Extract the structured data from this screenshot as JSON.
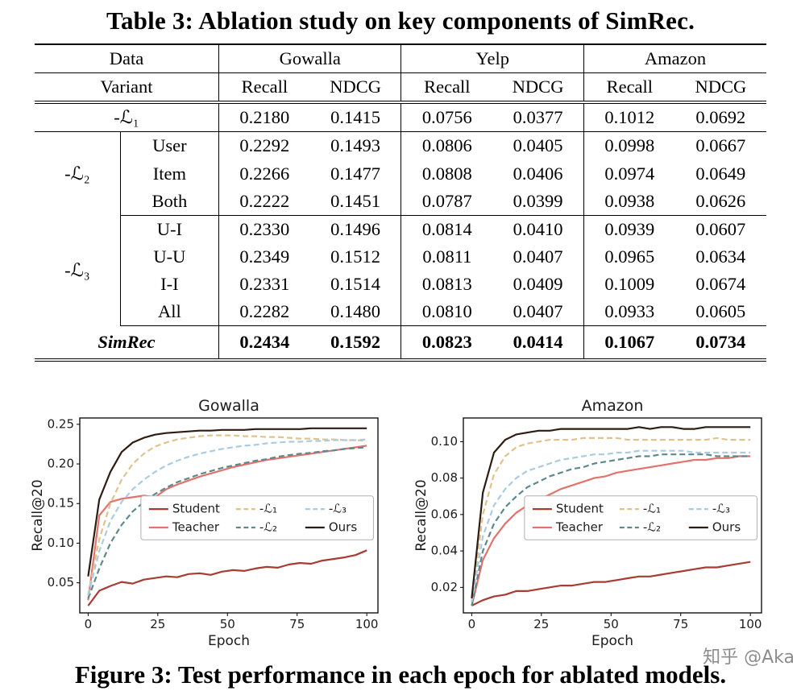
{
  "table": {
    "title": "Table 3: Ablation study on key components of SimRec.",
    "header": {
      "row1": [
        {
          "label": "Data",
          "span": 2
        },
        {
          "label": "Gowalla",
          "span": 2
        },
        {
          "label": "Yelp",
          "span": 2
        },
        {
          "label": "Amazon",
          "span": 2
        }
      ],
      "row2": [
        {
          "label": "Variant",
          "span": 2
        },
        {
          "label": "Recall",
          "span": 1
        },
        {
          "label": "NDCG",
          "span": 1
        },
        {
          "label": "Recall",
          "span": 1
        },
        {
          "label": "NDCG",
          "span": 1
        },
        {
          "label": "Recall",
          "span": 1
        },
        {
          "label": "NDCG",
          "span": 1
        }
      ]
    },
    "groups": [
      {
        "label": "-ℒ₁",
        "bold": false,
        "italic": false,
        "rows": [
          {
            "variant": "",
            "values": [
              "0.2180",
              "0.1415",
              "0.0756",
              "0.0377",
              "0.1012",
              "0.0692"
            ]
          }
        ]
      },
      {
        "label": "-ℒ₂",
        "bold": false,
        "italic": false,
        "rows": [
          {
            "variant": "User",
            "values": [
              "0.2292",
              "0.1493",
              "0.0806",
              "0.0405",
              "0.0998",
              "0.0667"
            ]
          },
          {
            "variant": "Item",
            "values": [
              "0.2266",
              "0.1477",
              "0.0808",
              "0.0406",
              "0.0974",
              "0.0649"
            ]
          },
          {
            "variant": "Both",
            "values": [
              "0.2222",
              "0.1451",
              "0.0787",
              "0.0399",
              "0.0938",
              "0.0626"
            ]
          }
        ]
      },
      {
        "label": "-ℒ₃",
        "bold": false,
        "italic": false,
        "rows": [
          {
            "variant": "U-I",
            "values": [
              "0.2330",
              "0.1496",
              "0.0814",
              "0.0410",
              "0.0939",
              "0.0607"
            ]
          },
          {
            "variant": "U-U",
            "values": [
              "0.2349",
              "0.1512",
              "0.0811",
              "0.0407",
              "0.0965",
              "0.0634"
            ]
          },
          {
            "variant": "I-I",
            "values": [
              "0.2331",
              "0.1514",
              "0.0813",
              "0.0409",
              "0.1009",
              "0.0674"
            ]
          },
          {
            "variant": "All",
            "values": [
              "0.2282",
              "0.1480",
              "0.0810",
              "0.0407",
              "0.0933",
              "0.0605"
            ]
          }
        ]
      },
      {
        "label": "SimRec",
        "bold": true,
        "italic": true,
        "rows": [
          {
            "variant": "",
            "values": [
              "0.2434",
              "0.1592",
              "0.0823",
              "0.0414",
              "0.1067",
              "0.0734"
            ]
          }
        ]
      }
    ]
  },
  "figure": {
    "caption": "Figure 3: Test performance in each epoch for ablated models."
  },
  "watermark": "知乎 @Aka",
  "chart_data": [
    {
      "type": "line",
      "title": "Gowalla",
      "xlabel": "Epoch",
      "ylabel": "Recall@20",
      "xlim": [
        -3,
        104
      ],
      "ylim": [
        0.012,
        0.258
      ],
      "xticks": [
        0,
        25,
        50,
        75,
        100
      ],
      "yticks": [
        0.05,
        0.1,
        0.15,
        0.2,
        0.25
      ],
      "legend_position": "center-right-inside",
      "grid": false,
      "x": [
        0,
        4,
        8,
        12,
        16,
        20,
        24,
        28,
        32,
        36,
        40,
        44,
        48,
        52,
        56,
        60,
        64,
        68,
        72,
        76,
        80,
        84,
        88,
        92,
        96,
        100
      ],
      "series": [
        {
          "name": "Student",
          "color": "#a83c32",
          "dash": false,
          "y": [
            0.021,
            0.04,
            0.046,
            0.051,
            0.049,
            0.054,
            0.056,
            0.058,
            0.057,
            0.061,
            0.062,
            0.06,
            0.064,
            0.066,
            0.065,
            0.068,
            0.07,
            0.069,
            0.073,
            0.075,
            0.074,
            0.078,
            0.08,
            0.082,
            0.085,
            0.091
          ]
        },
        {
          "name": "Teacher",
          "color": "#e2736b",
          "dash": false,
          "y": [
            0.028,
            0.135,
            0.152,
            0.156,
            0.158,
            0.16,
            0.158,
            0.168,
            0.174,
            0.179,
            0.184,
            0.188,
            0.192,
            0.196,
            0.199,
            0.202,
            0.205,
            0.207,
            0.209,
            0.211,
            0.213,
            0.215,
            0.217,
            0.219,
            0.221,
            0.223
          ]
        },
        {
          "name": "-ℒ₁",
          "color": "#dfc38e",
          "dash": true,
          "y": [
            0.035,
            0.105,
            0.15,
            0.18,
            0.2,
            0.213,
            0.222,
            0.227,
            0.231,
            0.233,
            0.235,
            0.236,
            0.236,
            0.236,
            0.235,
            0.235,
            0.234,
            0.234,
            0.233,
            0.232,
            0.232,
            0.231,
            0.231,
            0.23,
            0.23,
            0.229
          ]
        },
        {
          "name": "-ℒ₂",
          "color": "#5c8a8a",
          "dash": true,
          "y": [
            0.03,
            0.068,
            0.1,
            0.123,
            0.14,
            0.152,
            0.162,
            0.17,
            0.177,
            0.182,
            0.187,
            0.191,
            0.195,
            0.198,
            0.201,
            0.204,
            0.206,
            0.209,
            0.211,
            0.213,
            0.214,
            0.216,
            0.217,
            0.219,
            0.22,
            0.221
          ]
        },
        {
          "name": "-ℒ₃",
          "color": "#aacbe1",
          "dash": true,
          "y": [
            0.034,
            0.09,
            0.128,
            0.152,
            0.168,
            0.18,
            0.19,
            0.198,
            0.204,
            0.209,
            0.213,
            0.216,
            0.219,
            0.221,
            0.223,
            0.224,
            0.226,
            0.227,
            0.228,
            0.228,
            0.229,
            0.229,
            0.23,
            0.23,
            0.23,
            0.231
          ]
        },
        {
          "name": "Ours",
          "color": "#2e1c12",
          "dash": false,
          "y": [
            0.058,
            0.155,
            0.19,
            0.215,
            0.227,
            0.233,
            0.237,
            0.239,
            0.24,
            0.241,
            0.242,
            0.242,
            0.243,
            0.243,
            0.243,
            0.244,
            0.244,
            0.244,
            0.244,
            0.244,
            0.245,
            0.245,
            0.245,
            0.245,
            0.245,
            0.245
          ]
        }
      ]
    },
    {
      "type": "line",
      "title": "Amazon",
      "xlabel": "Epoch",
      "ylabel": "Recall@20",
      "xlim": [
        -3,
        104
      ],
      "ylim": [
        0.006,
        0.113
      ],
      "xticks": [
        0,
        25,
        50,
        75,
        100
      ],
      "yticks": [
        0.02,
        0.04,
        0.06,
        0.08,
        0.1
      ],
      "legend_position": "center-right-inside",
      "grid": false,
      "x": [
        0,
        4,
        8,
        12,
        16,
        20,
        24,
        28,
        32,
        36,
        40,
        44,
        48,
        52,
        56,
        60,
        64,
        68,
        72,
        76,
        80,
        84,
        88,
        92,
        96,
        100
      ],
      "series": [
        {
          "name": "Student",
          "color": "#a83c32",
          "dash": false,
          "y": [
            0.01,
            0.013,
            0.015,
            0.016,
            0.018,
            0.018,
            0.019,
            0.02,
            0.021,
            0.021,
            0.022,
            0.023,
            0.023,
            0.024,
            0.025,
            0.026,
            0.026,
            0.027,
            0.028,
            0.029,
            0.03,
            0.031,
            0.031,
            0.032,
            0.033,
            0.034
          ]
        },
        {
          "name": "Teacher",
          "color": "#e2736b",
          "dash": false,
          "y": [
            0.01,
            0.035,
            0.047,
            0.055,
            0.061,
            0.065,
            0.068,
            0.071,
            0.074,
            0.076,
            0.078,
            0.08,
            0.081,
            0.083,
            0.084,
            0.085,
            0.086,
            0.087,
            0.088,
            0.089,
            0.09,
            0.09,
            0.091,
            0.091,
            0.092,
            0.092
          ]
        },
        {
          "name": "-ℒ₁",
          "color": "#dfc38e",
          "dash": true,
          "y": [
            0.012,
            0.06,
            0.082,
            0.092,
            0.097,
            0.099,
            0.1,
            0.101,
            0.101,
            0.101,
            0.102,
            0.102,
            0.102,
            0.102,
            0.101,
            0.101,
            0.101,
            0.101,
            0.101,
            0.101,
            0.101,
            0.101,
            0.102,
            0.101,
            0.101,
            0.101
          ]
        },
        {
          "name": "-ℒ₂",
          "color": "#5c8a8a",
          "dash": true,
          "y": [
            0.01,
            0.04,
            0.055,
            0.064,
            0.07,
            0.075,
            0.078,
            0.081,
            0.083,
            0.085,
            0.086,
            0.088,
            0.089,
            0.09,
            0.091,
            0.092,
            0.092,
            0.093,
            0.093,
            0.093,
            0.093,
            0.093,
            0.092,
            0.092,
            0.092,
            0.092
          ]
        },
        {
          "name": "-ℒ₃",
          "color": "#aacbe1",
          "dash": true,
          "y": [
            0.012,
            0.048,
            0.065,
            0.074,
            0.08,
            0.084,
            0.086,
            0.088,
            0.09,
            0.091,
            0.092,
            0.093,
            0.093,
            0.094,
            0.094,
            0.095,
            0.095,
            0.095,
            0.095,
            0.095,
            0.094,
            0.094,
            0.094,
            0.094,
            0.094,
            0.094
          ]
        },
        {
          "name": "Ours",
          "color": "#2e1c12",
          "dash": false,
          "y": [
            0.014,
            0.072,
            0.094,
            0.101,
            0.104,
            0.105,
            0.106,
            0.106,
            0.107,
            0.107,
            0.107,
            0.107,
            0.107,
            0.107,
            0.107,
            0.108,
            0.107,
            0.108,
            0.108,
            0.107,
            0.107,
            0.108,
            0.108,
            0.108,
            0.108,
            0.108
          ]
        }
      ]
    }
  ]
}
